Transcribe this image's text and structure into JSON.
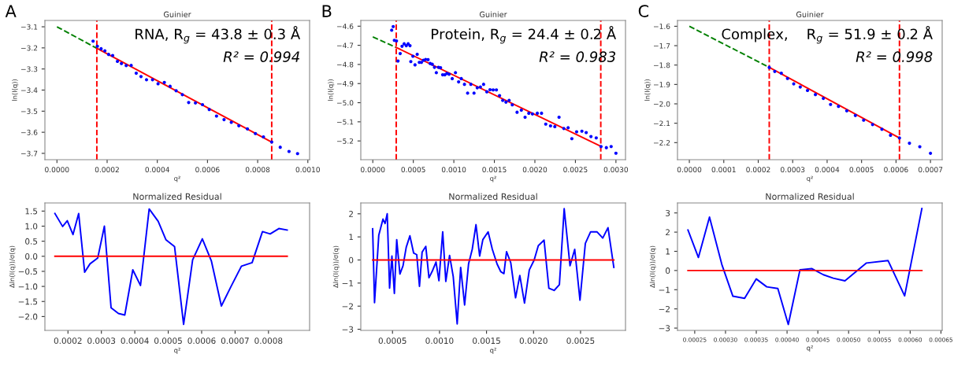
{
  "chart_data": [
    {
      "type": "scatter",
      "title": "Guinier",
      "xlabel": "q²",
      "ylabel": "ln(I(q))",
      "marker": "circle",
      "annotations": [
        "A",
        "RNA, R$_{g}$ = 43.8 ± 0.3 Å",
        "R² = 0.994"
      ],
      "x": [
        0.000144,
        0.000161,
        0.000176,
        0.000191,
        0.000206,
        0.000222,
        0.000241,
        0.000257,
        0.000276,
        0.000296,
        0.000316,
        0.000335,
        0.000357,
        0.000381,
        0.000403,
        0.000428,
        0.000451,
        0.000475,
        0.0005,
        0.000525,
        0.000552,
        0.00058,
        0.000607,
        0.000636,
        0.000666,
        0.000695,
        0.000725,
        0.000759,
        0.000791,
        0.000823,
        0.000856,
        0.00089,
        0.000925,
        0.000959
      ],
      "series": [
        {
          "type": "scatter",
          "color": "#0000ff",
          "values": [
            -3.168,
            -3.192,
            -3.204,
            -3.214,
            -3.231,
            -3.236,
            -3.264,
            -3.274,
            -3.284,
            -3.283,
            -3.32,
            -3.336,
            -3.351,
            -3.351,
            -3.37,
            -3.364,
            -3.382,
            -3.403,
            -3.422,
            -3.459,
            -3.461,
            -3.469,
            -3.492,
            -3.523,
            -3.54,
            -3.553,
            -3.569,
            -3.584,
            -3.606,
            -3.622,
            -3.646,
            -3.671,
            -3.691,
            -3.701
          ]
        },
        {
          "type": "line",
          "color": "#008000",
          "line_style": "dashed",
          "marker": "none",
          "x": [
            0,
            0.000159
          ],
          "values": [
            -3.1,
            -3.202
          ]
        },
        {
          "type": "line",
          "color": "#ff0000",
          "marker": "none",
          "x": [
            0.000159,
            0.000856
          ],
          "values": [
            -3.202,
            -3.647
          ]
        }
      ],
      "ref_lines": [
        {
          "axis": "x",
          "value": 0.000159,
          "color": "#ff0000",
          "line_style": "dashed"
        },
        {
          "axis": "x",
          "value": 0.000856,
          "color": "#ff0000",
          "line_style": "dashed"
        }
      ],
      "xlim": [
        -4.8e-05,
        0.001007
      ],
      "ylim": [
        -3.73,
        -3.07
      ],
      "xticks": [
        {
          "value": 0,
          "label": "0.0000"
        },
        0.0002,
        0.0004,
        0.0006,
        0.0008,
        {
          "value": 0.001,
          "label": "0.0010"
        }
      ],
      "yticks": [
        {
          "value": -3.7,
          "label": "−3.7"
        },
        {
          "value": -3.6,
          "label": "−3.6"
        },
        {
          "value": -3.5,
          "label": "−3.5"
        },
        {
          "value": -3.4,
          "label": "−3.4"
        },
        {
          "value": -3.3,
          "label": "−3.3"
        },
        {
          "value": -3.2,
          "label": "−3.2"
        },
        {
          "value": -3.1,
          "label": "−3.1"
        }
      ]
    },
    {
      "type": "scatter",
      "title": "Guinier",
      "xlabel": "q²",
      "ylabel": "ln(I(q))",
      "marker": "circle",
      "annotations": [
        "B",
        "Protein, R$_{g}$ = 24.4 ± 0.2 Å",
        "R² = 0.983"
      ],
      "x": [
        0.000233,
        0.000252,
        0.000266,
        0.000292,
        0.000311,
        0.000338,
        0.000361,
        0.000387,
        0.000413,
        0.000436,
        0.000459,
        0.000469,
        0.000495,
        0.000521,
        0.000548,
        0.0006,
        0.000574,
        0.000626,
        0.000652,
        0.000682,
        0.000708,
        0.000734,
        0.000761,
        0.000784,
        0.00081,
        0.000836,
        0.000862,
        0.000889,
        0.000915,
        0.000941,
        0.00098,
        0.00102,
        0.001059,
        0.001092,
        0.001131,
        0.00117,
        0.00121,
        0.001249,
        0.001289,
        0.001328,
        0.001367,
        0.001407,
        0.001446,
        0.001485,
        0.001525,
        0.001564,
        0.001603,
        0.001643,
        0.001682,
        0.001721,
        0.00178,
        0.001833,
        0.001879,
        0.001925,
        0.00197,
        0.00203,
        0.002082,
        0.002134,
        0.002193,
        0.002246,
        0.002298,
        0.002357,
        0.00241,
        0.002456,
        0.002515,
        0.00258,
        0.002633,
        0.002692,
        0.002757,
        0.002816,
        0.002882,
        0.002941,
        0.003
      ],
      "series": [
        {
          "type": "scatter",
          "color": "#0000ff",
          "values": [
            -4.621,
            -4.602,
            -4.674,
            -4.677,
            -4.782,
            -4.743,
            -4.705,
            -4.692,
            -4.702,
            -4.692,
            -4.702,
            -4.785,
            -4.757,
            -4.802,
            -4.747,
            -4.789,
            -4.789,
            -4.778,
            -4.774,
            -4.775,
            -4.795,
            -4.799,
            -4.815,
            -4.843,
            -4.815,
            -4.817,
            -4.854,
            -4.854,
            -4.847,
            -4.851,
            -4.874,
            -4.843,
            -4.891,
            -4.874,
            -4.904,
            -4.95,
            -4.904,
            -4.95,
            -4.922,
            -4.918,
            -4.904,
            -4.943,
            -4.932,
            -4.933,
            -4.933,
            -4.963,
            -4.988,
            -4.997,
            -4.988,
            -5.011,
            -5.05,
            -5.039,
            -5.076,
            -5.055,
            -5.059,
            -5.055,
            -5.055,
            -5.112,
            -5.121,
            -5.125,
            -5.076,
            -5.135,
            -5.131,
            -5.188,
            -5.152,
            -5.149,
            -5.156,
            -5.177,
            -5.184,
            -5.229,
            -5.235,
            -5.229,
            -5.264
          ]
        },
        {
          "type": "line",
          "color": "#008000",
          "line_style": "dashed",
          "marker": "none",
          "x": [
            0,
            0.000289
          ],
          "values": [
            -4.656,
            -4.711
          ]
        },
        {
          "type": "line",
          "color": "#ff0000",
          "marker": "none",
          "x": [
            0.000289,
            0.002813
          ],
          "values": [
            -4.711,
            -5.228
          ]
        }
      ],
      "ref_lines": [
        {
          "axis": "x",
          "value": 0.000289,
          "color": "#ff0000",
          "line_style": "dashed"
        },
        {
          "axis": "x",
          "value": 0.002813,
          "color": "#ff0000",
          "line_style": "dashed"
        }
      ],
      "xlim": [
        -0.000148,
        0.003118
      ],
      "ylim": [
        -5.298,
        -4.57
      ],
      "xticks": [
        {
          "value": 0,
          "label": "0.0000"
        },
        0.0005,
        {
          "value": 0.001,
          "label": "0.0010"
        },
        0.0015,
        {
          "value": 0.002,
          "label": "0.0020"
        },
        0.0025,
        {
          "value": 0.003,
          "label": "0.0030"
        }
      ],
      "yticks": [
        {
          "value": -5.2,
          "label": "−5.2"
        },
        {
          "value": -5.1,
          "label": "−5.1"
        },
        {
          "value": -5.0,
          "label": "−5.0"
        },
        {
          "value": -4.9,
          "label": "−4.9"
        },
        {
          "value": -4.8,
          "label": "−4.8"
        },
        {
          "value": -4.7,
          "label": "−4.7"
        },
        {
          "value": -4.6,
          "label": "−4.6"
        }
      ]
    },
    {
      "type": "scatter",
      "title": "Guinier",
      "xlabel": "q²",
      "ylabel": "ln(I(q))",
      "marker": "circle",
      "annotations": [
        "C",
        "Complex,    R$_{g}$ = 51.9 ± 0.2 Å",
        "R² = 0.998"
      ],
      "x": [
        0.000232,
        0.000248,
        0.000267,
        0.000285,
        0.000303,
        0.000322,
        0.000343,
        0.000366,
        0.000389,
        0.00041,
        0.000433,
        0.000457,
        0.000482,
        0.000506,
        0.000532,
        0.000559,
        0.000584,
        0.00061,
        0.000639,
        0.000669,
        0.0007
      ],
      "series": [
        {
          "type": "scatter",
          "color": "#0000ff",
          "values": [
            -1.812,
            -1.833,
            -1.842,
            -1.869,
            -1.897,
            -1.913,
            -1.931,
            -1.952,
            -1.972,
            -2.003,
            -2.013,
            -2.036,
            -2.06,
            -2.084,
            -2.107,
            -2.131,
            -2.162,
            -2.176,
            -2.203,
            -2.221,
            -2.255
          ]
        },
        {
          "type": "line",
          "color": "#008000",
          "line_style": "dashed",
          "marker": "none",
          "x": [
            0,
            0.000232
          ],
          "values": [
            -1.6,
            -1.812
          ]
        },
        {
          "type": "line",
          "color": "#ff0000",
          "marker": "none",
          "x": [
            0.000232,
            0.00061
          ],
          "values": [
            -1.812,
            -2.176
          ]
        }
      ],
      "ref_lines": [
        {
          "axis": "x",
          "value": 0.000232,
          "color": "#ff0000",
          "line_style": "dashed"
        },
        {
          "axis": "x",
          "value": 0.00061,
          "color": "#ff0000",
          "line_style": "dashed"
        }
      ],
      "xlim": [
        -3.44e-05,
        0.000734
      ],
      "ylim": [
        -2.288,
        -1.57
      ],
      "xticks": [
        {
          "value": 0,
          "label": "0.0000"
        },
        0.0001,
        0.0002,
        0.0003,
        0.0004,
        0.0005,
        0.0006,
        0.0007
      ],
      "yticks": [
        {
          "value": -2.2,
          "label": "−2.2"
        },
        {
          "value": -2.1,
          "label": "−2.1"
        },
        {
          "value": -2.0,
          "label": "−2.0"
        },
        {
          "value": -1.9,
          "label": "−1.9"
        },
        {
          "value": -1.8,
          "label": "−1.8"
        },
        {
          "value": -1.7,
          "label": "−1.7"
        },
        {
          "value": -1.6,
          "label": "−1.6"
        }
      ]
    },
    {
      "type": "line",
      "title": "Normalized Residual",
      "xlabel": "q²",
      "ylabel": "Δln(I(q))/σ(q)",
      "x": [
        0.000161,
        0.000184,
        0.000198,
        0.000215,
        0.000232,
        0.00025,
        0.000266,
        0.000289,
        0.000309,
        0.000329,
        0.000351,
        0.00037,
        0.000394,
        0.000417,
        0.000443,
        0.00047,
        0.000493,
        0.000519,
        0.000546,
        0.000573,
        0.000602,
        0.000629,
        0.000659,
        0.000688,
        0.000719,
        0.000751,
        0.000782,
        0.000805,
        0.000831,
        0.000856
      ],
      "series": [
        {
          "color": "#0000ff",
          "values": [
            1.42,
            0.99,
            1.18,
            0.72,
            1.42,
            -0.53,
            -0.25,
            -0.06,
            1.0,
            -1.71,
            -1.9,
            -1.95,
            -0.45,
            -0.97,
            1.57,
            1.16,
            0.55,
            0.32,
            -2.26,
            -0.12,
            0.58,
            -0.15,
            -1.65,
            -1.0,
            -0.33,
            -0.21,
            0.82,
            0.74,
            0.92,
            0.87
          ]
        },
        {
          "color": "#ff0000",
          "x": [
            0.000161,
            0.000856
          ],
          "values": [
            0,
            0
          ]
        }
      ],
      "xlim": [
        0.000131,
        0.000923
      ],
      "ylim": [
        -2.46,
        1.77
      ],
      "xticks": [
        0.0002,
        0.0003,
        0.0004,
        0.0005,
        0.0006,
        0.0007,
        0.0008
      ],
      "yticks": [
        {
          "value": -2.0,
          "label": "−2.0"
        },
        {
          "value": -1.5,
          "label": "−1.5"
        },
        {
          "value": -1.0,
          "label": "−1.0"
        },
        {
          "value": -0.5,
          "label": "−0.5"
        },
        {
          "value": 0,
          "label": "0.0"
        },
        0.5,
        {
          "value": 1,
          "label": "1.0"
        },
        1.5
      ]
    },
    {
      "type": "line",
      "title": "Normalized Residual",
      "xlabel": "q²",
      "ylabel": "Δln(I(q))/σ(q)",
      "x": [
        0.000289,
        0.000309,
        0.000354,
        0.000399,
        0.000421,
        0.000444,
        0.000469,
        0.000494,
        0.00052,
        0.000545,
        0.000579,
        0.000612,
        0.000646,
        0.000685,
        0.000725,
        0.000758,
        0.000787,
        0.000815,
        0.000854,
        0.000888,
        0.000927,
        0.000963,
        0.000994,
        0.001034,
        0.001067,
        0.001107,
        0.001146,
        0.001188,
        0.001225,
        0.001267,
        0.001309,
        0.001348,
        0.001388,
        0.001427,
        0.001461,
        0.001517,
        0.001562,
        0.001612,
        0.001652,
        0.001685,
        0.001713,
        0.001758,
        0.001809,
        0.001854,
        0.001904,
        0.001955,
        0.002006,
        0.002051,
        0.002112,
        0.002163,
        0.002219,
        0.002275,
        0.002326,
        0.002388,
        0.002438,
        0.002494,
        0.002551,
        0.002607,
        0.002674,
        0.002736,
        0.002792,
        0.002854
      ],
      "series": [
        {
          "color": "#0000ff",
          "values": [
            1.35,
            -1.85,
            1.07,
            1.77,
            1.58,
            2.0,
            -1.22,
            0.17,
            -1.45,
            0.88,
            -0.61,
            -0.25,
            0.55,
            1.05,
            0.3,
            0.23,
            -1.14,
            0.34,
            0.59,
            -0.77,
            -0.45,
            -0.09,
            -0.9,
            1.22,
            -0.93,
            0.2,
            -0.72,
            -2.77,
            -0.32,
            -1.95,
            -0.17,
            0.46,
            1.53,
            0.17,
            0.88,
            1.22,
            0.46,
            -0.17,
            -0.51,
            -0.59,
            0.36,
            -0.12,
            -1.64,
            -0.67,
            -1.87,
            -0.43,
            -0.01,
            0.62,
            0.86,
            -1.22,
            -1.32,
            -1.07,
            2.22,
            -0.25,
            0.46,
            -1.74,
            0.72,
            1.22,
            1.22,
            0.95,
            1.4,
            -0.32
          ]
        },
        {
          "color": "#ff0000",
          "x": [
            0.000289,
            0.002854
          ],
          "values": [
            0,
            0
          ]
        }
      ],
      "xlim": [
        0.000163,
        0.002978
      ],
      "ylim": [
        -3.05,
        2.47
      ],
      "xticks": [
        0.0005,
        {
          "value": 0.001,
          "label": "0.0010"
        },
        0.0015,
        {
          "value": 0.002,
          "label": "0.0020"
        },
        0.0025
      ],
      "yticks": [
        {
          "value": -3,
          "label": "−3"
        },
        {
          "value": -2,
          "label": "−2"
        },
        {
          "value": -1,
          "label": "−1"
        },
        0,
        1,
        2
      ]
    },
    {
      "type": "line",
      "title": "Normalized Residual",
      "xlabel": "q²",
      "ylabel": "Δln(I(q))/σ(q)",
      "x": [
        0.000239,
        0.000256,
        0.000274,
        0.000294,
        0.000312,
        0.000331,
        0.00035,
        0.000367,
        0.000385,
        0.000402,
        0.000421,
        0.00044,
        0.000459,
        0.000475,
        0.000494,
        0.000529,
        0.000564,
        0.000591,
        0.000619
      ],
      "series": [
        {
          "color": "#0000ff",
          "values": [
            2.11,
            0.68,
            2.78,
            0.32,
            -1.34,
            -1.45,
            -0.44,
            -0.85,
            -0.94,
            -2.81,
            0.04,
            0.1,
            -0.22,
            -0.4,
            -0.54,
            0.39,
            0.52,
            -1.32,
            3.23
          ]
        },
        {
          "color": "#ff0000",
          "x": [
            0.000239,
            0.000619
          ],
          "values": [
            0,
            0
          ]
        }
      ],
      "xlim": [
        0.000222,
        0.000652
      ],
      "ylim": [
        -3.12,
        3.52
      ],
      "xticks": [
        0.00025,
        {
          "value": 0.0003,
          "label": "0.00030"
        },
        0.00035,
        {
          "value": 0.0004,
          "label": "0.00040"
        },
        0.00045,
        {
          "value": 0.0005,
          "label": "0.00050"
        },
        0.00055,
        {
          "value": 0.0006,
          "label": "0.00060"
        },
        0.00065
      ],
      "yticks": [
        {
          "value": -3,
          "label": "−3"
        },
        {
          "value": -2,
          "label": "−2"
        },
        {
          "value": -1,
          "label": "−1"
        },
        0,
        1,
        2,
        3
      ]
    }
  ]
}
